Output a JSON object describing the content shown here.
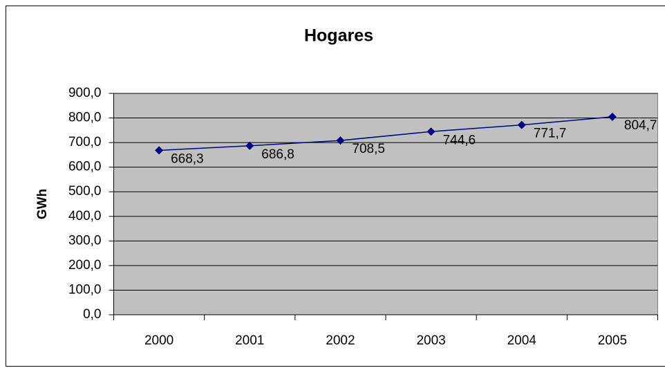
{
  "chart_data": {
    "type": "line",
    "title": "Hogares",
    "y_label": "GWh",
    "categories": [
      "2000",
      "2001",
      "2002",
      "2003",
      "2004",
      "2005"
    ],
    "series": [
      {
        "name": "Hogares",
        "color": "#000080",
        "values": [
          668.3,
          686.8,
          708.5,
          744.6,
          771.7,
          804.7
        ],
        "value_labels": [
          "668,3",
          "686,8",
          "708,5",
          "744,6",
          "771,7",
          "804,7"
        ]
      }
    ],
    "ylim": [
      0,
      900
    ],
    "yticks": [
      {
        "value": 0,
        "label": "0,0"
      },
      {
        "value": 100,
        "label": "100,0"
      },
      {
        "value": 200,
        "label": "200,0"
      },
      {
        "value": 300,
        "label": "300,0"
      },
      {
        "value": 400,
        "label": "400,0"
      },
      {
        "value": 500,
        "label": "500,0"
      },
      {
        "value": 600,
        "label": "600,0"
      },
      {
        "value": 700,
        "label": "700,0"
      },
      {
        "value": 800,
        "label": "800,0"
      },
      {
        "value": 900,
        "label": "900,0"
      }
    ],
    "grid": true,
    "plot_background": "#c0c0c0"
  }
}
